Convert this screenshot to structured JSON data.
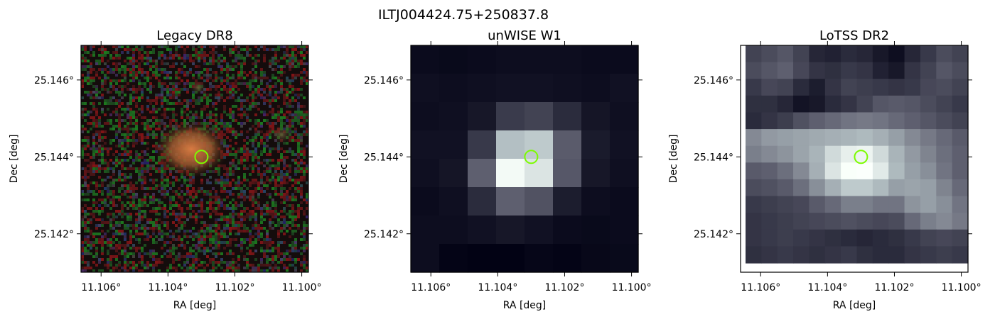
{
  "suptitle": "ILTJ004424.75+250837.8",
  "colors": {
    "marker": "#7cfc00",
    "axis": "#000000"
  },
  "chart_data": [
    {
      "type": "heatmap",
      "title": "Legacy DR8",
      "xlabel": "RA [deg]",
      "ylabel": "Dec [deg]",
      "xticks": [
        "11.106°",
        "11.104°",
        "11.102°",
        "11.100°"
      ],
      "yticks": [
        "25.146°",
        "25.144°",
        "25.142°"
      ],
      "xtick_values": [
        11.106,
        11.104,
        11.102,
        11.1
      ],
      "ytick_values": [
        25.146,
        25.144,
        25.142
      ],
      "xlim": [
        11.1066,
        11.0998
      ],
      "ylim": [
        25.141,
        25.1469
      ],
      "image": "RGB optical cutout (noisy background)",
      "marker": {
        "ra": 11.103,
        "dec": 25.144,
        "shape": "circle"
      }
    },
    {
      "type": "heatmap",
      "title": "unWISE W1",
      "xlabel": "RA [deg]",
      "ylabel": "Dec [deg]",
      "xticks": [
        "11.106°",
        "11.104°",
        "11.102°",
        "11.100°"
      ],
      "yticks": [
        "25.146°",
        "25.144°",
        "25.142°"
      ],
      "xtick_values": [
        11.106,
        11.104,
        11.102,
        11.1
      ],
      "ytick_values": [
        25.146,
        25.144,
        25.142
      ],
      "xlim": [
        11.1066,
        11.0998
      ],
      "ylim": [
        25.141,
        25.1469
      ],
      "grid": [
        [
          12,
          10,
          12,
          14,
          14,
          14,
          12,
          12
        ],
        [
          16,
          14,
          16,
          18,
          18,
          16,
          14,
          18
        ],
        [
          14,
          16,
          24,
          62,
          70,
          46,
          22,
          16
        ],
        [
          18,
          18,
          60,
          190,
          200,
          96,
          28,
          18
        ],
        [
          16,
          22,
          100,
          245,
          225,
          92,
          24,
          16
        ],
        [
          12,
          16,
          46,
          100,
          86,
          30,
          14,
          12
        ],
        [
          14,
          14,
          18,
          24,
          18,
          12,
          10,
          12
        ],
        [
          14,
          4,
          2,
          2,
          6,
          4,
          8,
          10
        ]
      ],
      "marker": {
        "ra": 11.103,
        "dec": 25.144,
        "shape": "circle"
      }
    },
    {
      "type": "heatmap",
      "title": "LoTSS DR2",
      "xlabel": "RA [deg]",
      "ylabel": "Dec [deg]",
      "xticks": [
        "11.106°",
        "11.104°",
        "11.102°",
        "11.100°"
      ],
      "yticks": [
        "25.146°",
        "25.144°",
        "25.142°"
      ],
      "xtick_values": [
        11.106,
        11.104,
        11.102,
        11.1
      ],
      "ytick_values": [
        25.146,
        25.144,
        25.142
      ],
      "xlim": [
        11.1066,
        11.0998
      ],
      "ylim": [
        25.141,
        25.1469
      ],
      "grid": [
        [
          70,
          80,
          90,
          70,
          40,
          35,
          45,
          40,
          25,
          15,
          40,
          60,
          80,
          70
        ],
        [
          80,
          90,
          100,
          75,
          55,
          50,
          60,
          55,
          35,
          25,
          55,
          70,
          90,
          80
        ],
        [
          60,
          75,
          70,
          45,
          30,
          55,
          70,
          65,
          60,
          55,
          60,
          75,
          80,
          70
        ],
        [
          50,
          50,
          40,
          20,
          25,
          45,
          55,
          70,
          90,
          95,
          90,
          80,
          70,
          60
        ],
        [
          45,
          55,
          65,
          85,
          100,
          110,
          120,
          125,
          120,
          110,
          100,
          90,
          80,
          70
        ],
        [
          140,
          155,
          160,
          165,
          170,
          175,
          180,
          185,
          175,
          160,
          140,
          125,
          110,
          95
        ],
        [
          130,
          140,
          150,
          165,
          180,
          215,
          235,
          240,
          215,
          180,
          155,
          135,
          115,
          100
        ],
        [
          95,
          100,
          115,
          140,
          175,
          225,
          250,
          252,
          230,
          185,
          160,
          145,
          120,
          100
        ],
        [
          80,
          85,
          95,
          115,
          145,
          175,
          200,
          200,
          185,
          160,
          165,
          160,
          135,
          110
        ],
        [
          60,
          65,
          70,
          75,
          95,
          110,
          130,
          130,
          120,
          120,
          150,
          160,
          145,
          120
        ],
        [
          55,
          60,
          65,
          70,
          75,
          80,
          85,
          80,
          75,
          80,
          110,
          130,
          140,
          125
        ],
        [
          55,
          60,
          65,
          60,
          55,
          50,
          45,
          40,
          45,
          50,
          60,
          70,
          75,
          70
        ],
        [
          50,
          55,
          60,
          55,
          50,
          55,
          60,
          50,
          45,
          45,
          55,
          60,
          65,
          60
        ]
      ],
      "marker": {
        "ra": 11.103,
        "dec": 25.144,
        "shape": "circle"
      }
    }
  ]
}
